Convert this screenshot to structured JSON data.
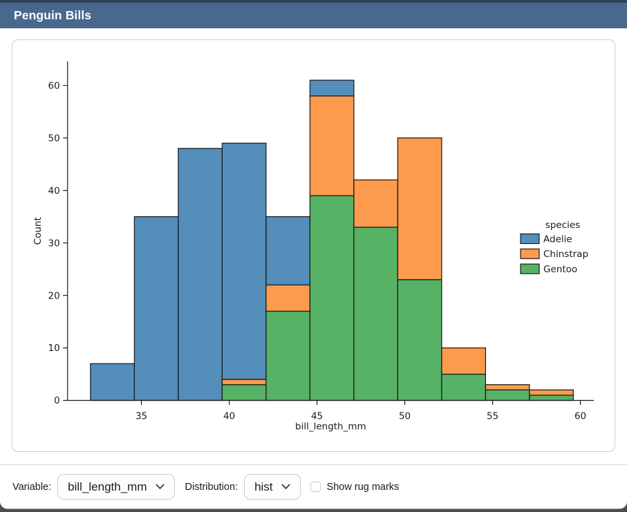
{
  "header": {
    "title": "Penguin Bills"
  },
  "chart_data": {
    "type": "histogram",
    "stacked": true,
    "xlabel": "bill_length_mm",
    "ylabel": "Count",
    "legend_title": "species",
    "legend_position": "center right",
    "bin_edges": [
      32.1,
      34.6,
      37.1,
      39.6,
      42.1,
      44.6,
      47.1,
      49.6,
      52.1,
      54.6,
      57.1,
      59.6
    ],
    "series": [
      {
        "name": "Adelie",
        "color": "#548EBA",
        "values": [
          7,
          35,
          48,
          45,
          13,
          3,
          0,
          0,
          0,
          0,
          0
        ]
      },
      {
        "name": "Chinstrap",
        "color": "#FC9A4E",
        "values": [
          0,
          0,
          0,
          1,
          5,
          19,
          9,
          27,
          5,
          1,
          1
        ]
      },
      {
        "name": "Gentoo",
        "color": "#56B264",
        "values": [
          0,
          0,
          0,
          3,
          17,
          39,
          33,
          23,
          5,
          2,
          1
        ]
      }
    ],
    "stack_order_bottom_to_top": [
      "Gentoo",
      "Chinstrap",
      "Adelie"
    ],
    "bin_totals": [
      7,
      35,
      48,
      49,
      35,
      61,
      42,
      50,
      10,
      3,
      2
    ],
    "x_ticks": [
      35,
      40,
      45,
      50,
      55,
      60
    ],
    "y_ticks": [
      0,
      10,
      20,
      30,
      40,
      50,
      60
    ],
    "xlim": [
      30.7,
      61.0
    ],
    "ylim": [
      0,
      64.5
    ],
    "grid": false,
    "bar_edge_color": "#1a1a1a",
    "text_color": "#1a1a1a"
  },
  "controls": {
    "variable_label": "Variable:",
    "variable_value": "bill_length_mm",
    "distribution_label": "Distribution:",
    "distribution_value": "hist",
    "rug_label": "Show rug marks",
    "rug_checked": false
  },
  "colors": {
    "header_bg": "#4A678D",
    "header_top_strip": "#2E4157",
    "card_border": "#CFCFCF",
    "window_bottom_strip": "#4D4D4D"
  }
}
